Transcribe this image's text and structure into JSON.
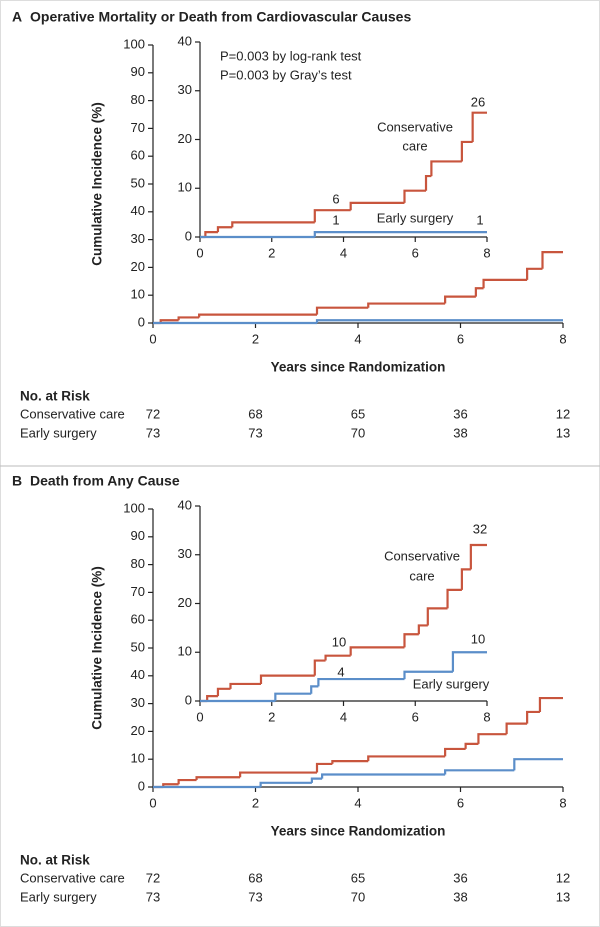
{
  "chart_data": [
    {
      "type": "step",
      "panel_label": "A",
      "title": "Operative Mortality or Death from Cardiovascular Causes",
      "x_label": "Years since Randomization",
      "y_label": "Cumulative Incidence (%)",
      "xlim": [
        0,
        8
      ],
      "xticks": [
        0,
        2,
        4,
        6,
        8
      ],
      "ylim": [
        0,
        100
      ],
      "yticks": [
        0,
        10,
        20,
        30,
        40,
        50,
        60,
        70,
        80,
        90,
        100
      ],
      "series": [
        {
          "name": "Conservative care",
          "color": "#c8553d",
          "x": [
            0,
            0.15,
            0.5,
            0.9,
            3.2,
            4.2,
            5.7,
            6.3,
            6.45,
            7.3,
            7.6
          ],
          "values": [
            0,
            1,
            2,
            3,
            5.5,
            7,
            9.5,
            12.5,
            15.5,
            19.5,
            25.5
          ]
        },
        {
          "name": "Early surgery",
          "color": "#5b8ec9",
          "x": [
            0,
            3.2
          ],
          "values": [
            0,
            1
          ]
        }
      ],
      "inset": {
        "xlim": [
          0,
          8
        ],
        "xticks": [
          0,
          2,
          4,
          6,
          8
        ],
        "ylim": [
          0,
          40
        ],
        "yticks": [
          0,
          10,
          20,
          30,
          40
        ]
      },
      "annotations": [
        "P=0.003 by log-rank test",
        "P=0.003 by Gray’s test"
      ],
      "curve_labels": [
        [
          "Conservative",
          "care"
        ],
        [
          "Early surgery"
        ]
      ],
      "event_counts": [
        26,
        6,
        1,
        1
      ],
      "at_risk": {
        "title": "No. at Risk",
        "rows": [
          {
            "label": "Conservative care",
            "values": [
              72,
              68,
              65,
              36,
              12
            ]
          },
          {
            "label": "Early surgery",
            "values": [
              73,
              73,
              70,
              38,
              13
            ]
          }
        ]
      }
    },
    {
      "type": "step",
      "panel_label": "B",
      "title": "Death from Any Cause",
      "x_label": "Years since Randomization",
      "y_label": "Cumulative Incidence (%)",
      "xlim": [
        0,
        8
      ],
      "xticks": [
        0,
        2,
        4,
        6,
        8
      ],
      "ylim": [
        0,
        100
      ],
      "yticks": [
        0,
        10,
        20,
        30,
        40,
        50,
        60,
        70,
        80,
        90,
        100
      ],
      "series": [
        {
          "name": "Conservative care",
          "color": "#c8553d",
          "x": [
            0,
            0.2,
            0.5,
            0.85,
            1.7,
            3.2,
            3.5,
            4.2,
            5.7,
            6.1,
            6.35,
            6.9,
            7.3,
            7.55
          ],
          "values": [
            0,
            1,
            2.5,
            3.5,
            5.2,
            8.3,
            9.3,
            11,
            13.7,
            15.5,
            19,
            22.8,
            27,
            32
          ]
        },
        {
          "name": "Early surgery",
          "color": "#5b8ec9",
          "x": [
            0,
            2.1,
            3.1,
            3.3,
            5.7,
            7.05
          ],
          "values": [
            0,
            1.5,
            3,
            4.5,
            6,
            10
          ]
        }
      ],
      "inset": {
        "xlim": [
          0,
          8
        ],
        "xticks": [
          0,
          2,
          4,
          6,
          8
        ],
        "ylim": [
          0,
          40
        ],
        "yticks": [
          0,
          10,
          20,
          30,
          40
        ]
      },
      "curve_labels": [
        [
          "Conservative",
          "care"
        ],
        [
          "Early surgery"
        ]
      ],
      "event_counts": [
        32,
        10,
        4,
        10
      ],
      "at_risk": {
        "title": "No. at Risk",
        "rows": [
          {
            "label": "Conservative care",
            "values": [
              72,
              68,
              65,
              36,
              12
            ]
          },
          {
            "label": "Early surgery",
            "values": [
              73,
              73,
              70,
              38,
              13
            ]
          }
        ]
      }
    }
  ]
}
